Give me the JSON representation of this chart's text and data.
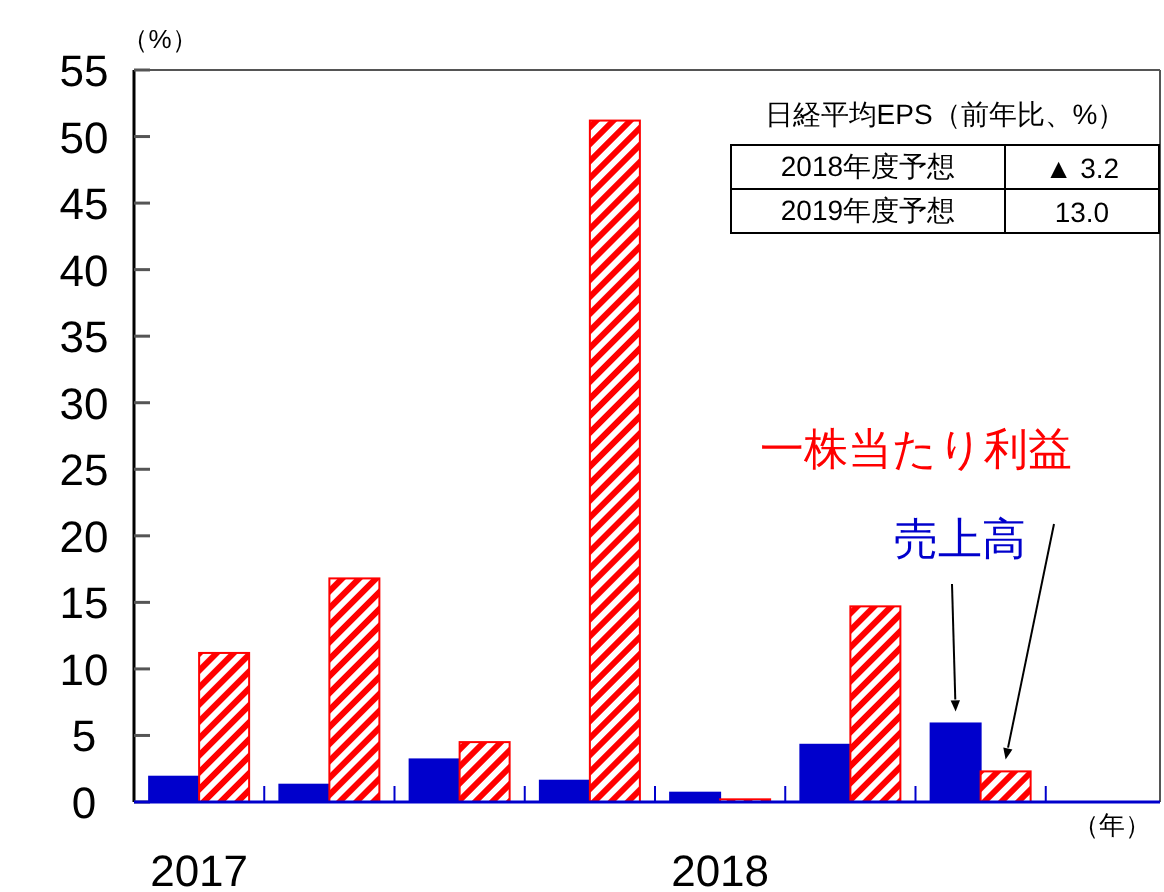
{
  "chart_data": {
    "type": "bar",
    "ylabel": "（%）",
    "xlabel": "（年）",
    "categories": [
      "2017",
      null,
      null,
      null,
      "2018",
      null,
      null,
      null
    ],
    "series": [
      {
        "name": "売上高",
        "color": "#0000cc",
        "values": [
          1.9,
          1.3,
          3.2,
          1.6,
          0.7,
          4.3,
          5.9,
          null
        ]
      },
      {
        "name": "一株当たり利益",
        "color": "#ff0000",
        "values": [
          11.2,
          16.8,
          4.5,
          51.2,
          0.2,
          14.7,
          2.3,
          null
        ]
      }
    ],
    "ylim": [
      0,
      55
    ],
    "yticks": [
      0,
      5,
      10,
      15,
      20,
      25,
      30,
      35,
      40,
      45,
      50,
      55
    ],
    "grid": false,
    "annotations": [
      "日経平均EPS（前年比、%）",
      "2018年度予想",
      "▲ 3.2",
      "2019年度予想",
      "13.0"
    ]
  }
}
